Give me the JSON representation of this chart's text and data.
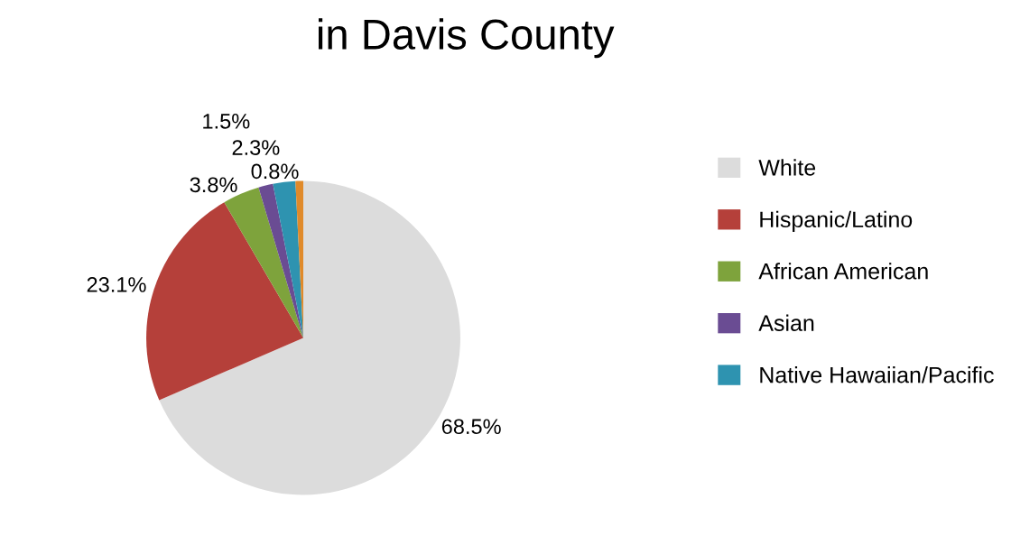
{
  "chart_data": {
    "type": "pie",
    "title": "in Davis County",
    "categories": [
      "White",
      "Hispanic/Latino",
      "African American",
      "Asian",
      "Native Hawaiian/Pacific",
      null
    ],
    "values": [
      68.5,
      23.1,
      3.8,
      1.5,
      2.3,
      0.8
    ],
    "value_labels": [
      "68.5%",
      "23.1%",
      "3.8%",
      "1.5%",
      "2.3%",
      "0.8%"
    ],
    "colors": [
      "#dcdcdc",
      "#b5403a",
      "#7ea33c",
      "#6a4c93",
      "#2e93b0",
      "#e08a2a"
    ],
    "legend": "right"
  }
}
